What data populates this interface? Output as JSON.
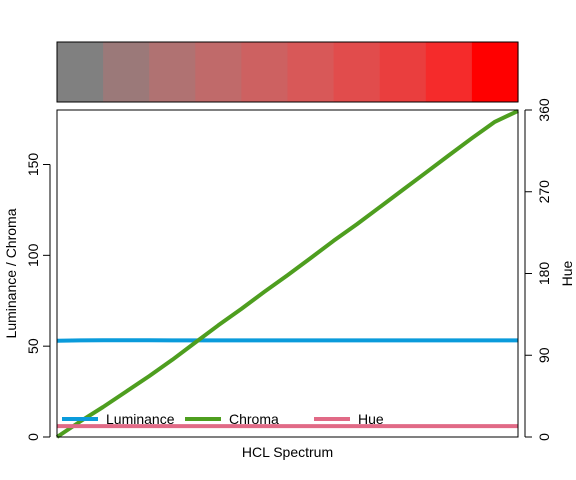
{
  "chart_data": {
    "type": "line",
    "xlabel": "HCL Spectrum",
    "ylabel_left": "Luminance / Chroma",
    "ylabel_right": "Hue",
    "ylim_left": [
      0,
      180
    ],
    "ylim_right": [
      0,
      360
    ],
    "yticks_left": [
      "0",
      "50",
      "100",
      "150"
    ],
    "yticks_right": [
      "0",
      "90",
      "180",
      "270",
      "360"
    ],
    "swatches": [
      "#808080",
      "#9B7979",
      "#B07272",
      "#C06A6A",
      "#CD6161",
      "#D85858",
      "#E14C4C",
      "#EA3E3E",
      "#F52B2B",
      "#FF0000"
    ],
    "x": [
      0,
      1,
      2,
      3,
      4,
      5,
      6,
      7,
      8,
      9,
      10,
      11,
      12,
      13,
      14,
      15,
      16,
      17,
      18,
      19,
      20
    ],
    "series": [
      {
        "name": "Luminance",
        "color": "#0A9BDB",
        "axis": "left",
        "values": [
          53,
          53.2,
          53.3,
          53.3,
          53.3,
          53.2,
          53.2,
          53.2,
          53.2,
          53.2,
          53.2,
          53.2,
          53.2,
          53.2,
          53.2,
          53.2,
          53.2,
          53.2,
          53.2,
          53.2,
          53.2
        ]
      },
      {
        "name": "Chroma",
        "color": "#4E9E1F",
        "axis": "left",
        "values": [
          0,
          8.5,
          16.5,
          25,
          33.5,
          42.5,
          52,
          61.5,
          70.5,
          80,
          89,
          98.5,
          108,
          117,
          126.5,
          136,
          145.5,
          155,
          164.5,
          173.5,
          179.5
        ]
      },
      {
        "name": "Hue",
        "color": "#E16A86",
        "axis": "right",
        "values": [
          12,
          12,
          12,
          12,
          12,
          12,
          12,
          12,
          12,
          12,
          12,
          12,
          12,
          12,
          12,
          12,
          12,
          12,
          12,
          12,
          12
        ]
      }
    ],
    "legend": "bottom-left"
  }
}
